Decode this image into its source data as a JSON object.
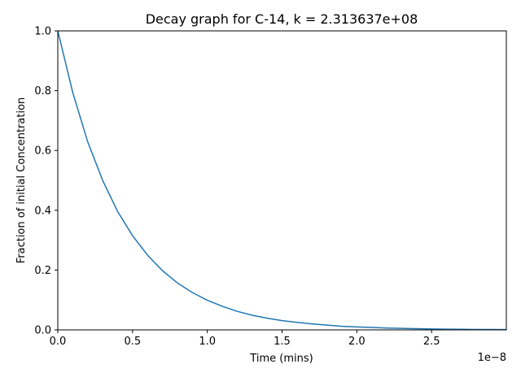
{
  "chart_data": {
    "type": "line",
    "title": "Decay graph for C-14, k = 2.313637e+08",
    "xlabel": "Time (mins)",
    "ylabel": "Fraction of initial Concentration",
    "x_offset_text": "1e−8",
    "xlim": [
      0,
      3e-08
    ],
    "ylim": [
      0,
      1.0
    ],
    "x_ticks": [
      0,
      5e-09,
      1e-08,
      1.5e-08,
      2e-08,
      2.5e-08
    ],
    "x_tick_labels": [
      "0.0",
      "0.5",
      "1.0",
      "1.5",
      "2.0",
      "2.5"
    ],
    "y_ticks": [
      0.0,
      0.2,
      0.4,
      0.6,
      0.8,
      1.0
    ],
    "y_tick_labels": [
      "0.0",
      "0.2",
      "0.4",
      "0.6",
      "0.8",
      "1.0"
    ],
    "grid": false,
    "series": [
      {
        "color": "#1f77b4",
        "x": [
          0,
          1e-09,
          2e-09,
          3e-09,
          4e-09,
          5e-09,
          6e-09,
          7e-09,
          8e-09,
          9e-09,
          1e-08,
          1.1e-08,
          1.2e-08,
          1.3e-08,
          1.4e-08,
          1.5e-08,
          1.6e-08,
          1.7e-08,
          1.8e-08,
          1.9e-08,
          2e-08,
          2.1e-08,
          2.2e-08,
          2.3e-08,
          2.4e-08,
          2.5e-08,
          2.6e-08,
          2.7e-08,
          2.8e-08,
          2.9e-08,
          3e-08
        ],
        "y": [
          1.0,
          0.794,
          0.629,
          0.5,
          0.396,
          0.315,
          0.25,
          0.198,
          0.157,
          0.125,
          0.099,
          0.079,
          0.062,
          0.049,
          0.039,
          0.031,
          0.025,
          0.02,
          0.016,
          0.012,
          0.01,
          0.008,
          0.006,
          0.005,
          0.004,
          0.003,
          0.0024,
          0.0019,
          0.0015,
          0.0012,
          0.001
        ]
      }
    ]
  }
}
